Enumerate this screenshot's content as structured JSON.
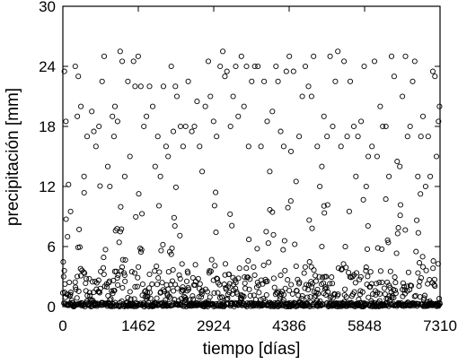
{
  "chart_data": {
    "type": "scatter",
    "xlabel": "tiempo [días]",
    "ylabel": "precipitación [mm]",
    "xlim": [
      0,
      7310
    ],
    "ylim": [
      0,
      30
    ],
    "xticks": [
      0,
      1462,
      2924,
      4386,
      5848,
      7310
    ],
    "xtick_labels": [
      "0",
      "1462",
      "2924",
      "4386",
      "5848",
      "7310"
    ],
    "yticks": [
      0,
      6,
      12,
      18,
      24,
      30
    ],
    "ytick_labels": [
      "0",
      "6",
      "12",
      "18",
      "24",
      "30"
    ],
    "marker": "open-circle",
    "grid": false,
    "legend": "none",
    "series": [
      {
        "note_points": "daily values, one per day, estimated as seasonal pattern",
        "x": [],
        "y": []
      }
    ],
    "points": [
      [
        30,
        23.5
      ],
      [
        60,
        18.5
      ],
      [
        110,
        12.2
      ],
      [
        150,
        9.5
      ],
      [
        240,
        24
      ],
      [
        280,
        19
      ],
      [
        300,
        23
      ],
      [
        350,
        20
      ],
      [
        410,
        13
      ],
      [
        470,
        17
      ],
      [
        560,
        19.5
      ],
      [
        600,
        17.5
      ],
      [
        640,
        16
      ],
      [
        700,
        18
      ],
      [
        760,
        22.5
      ],
      [
        800,
        25
      ],
      [
        870,
        14
      ],
      [
        910,
        12
      ],
      [
        960,
        19
      ],
      [
        990,
        17
      ],
      [
        1010,
        20
      ],
      [
        1060,
        18.5
      ],
      [
        1110,
        25.5
      ],
      [
        1150,
        24.5
      ],
      [
        1200,
        13
      ],
      [
        1260,
        22.5
      ],
      [
        1300,
        15
      ],
      [
        1370,
        24.5
      ],
      [
        1400,
        22
      ],
      [
        1460,
        25
      ],
      [
        1510,
        22
      ],
      [
        1570,
        18
      ],
      [
        1620,
        19
      ],
      [
        1680,
        22
      ],
      [
        1740,
        20
      ],
      [
        1790,
        14
      ],
      [
        1840,
        17
      ],
      [
        1890,
        13
      ],
      [
        1950,
        22
      ],
      [
        2000,
        16
      ],
      [
        2040,
        15
      ],
      [
        2100,
        24
      ],
      [
        2140,
        17.5
      ],
      [
        2180,
        22
      ],
      [
        2210,
        21
      ],
      [
        2280,
        18
      ],
      [
        2330,
        16
      ],
      [
        2380,
        18
      ],
      [
        2430,
        22.5
      ],
      [
        2500,
        17.5
      ],
      [
        2550,
        18
      ],
      [
        2600,
        20.5
      ],
      [
        2650,
        16
      ],
      [
        2700,
        13.5
      ],
      [
        2760,
        20
      ],
      [
        2820,
        24.5
      ],
      [
        2860,
        21
      ],
      [
        2920,
        18.5
      ],
      [
        2980,
        17
      ],
      [
        3050,
        24
      ],
      [
        3100,
        25.5
      ],
      [
        3140,
        23
      ],
      [
        3180,
        23.5
      ],
      [
        3250,
        18
      ],
      [
        3300,
        21
      ],
      [
        3350,
        24
      ],
      [
        3400,
        19
      ],
      [
        3460,
        25
      ],
      [
        3510,
        20
      ],
      [
        3560,
        24
      ],
      [
        3600,
        16
      ],
      [
        3660,
        22.5
      ],
      [
        3720,
        24
      ],
      [
        3780,
        24
      ],
      [
        3840,
        16
      ],
      [
        3900,
        22.5
      ],
      [
        3960,
        18.5
      ],
      [
        4010,
        13.5
      ],
      [
        4060,
        19.5
      ],
      [
        4130,
        24
      ],
      [
        4170,
        22.5
      ],
      [
        4220,
        17.5
      ],
      [
        4280,
        16
      ],
      [
        4330,
        23.5
      ],
      [
        4390,
        25
      ],
      [
        4420,
        15.5
      ],
      [
        4470,
        23.5
      ],
      [
        4520,
        12.5
      ],
      [
        4580,
        17
      ],
      [
        4640,
        21
      ],
      [
        4700,
        24
      ],
      [
        4760,
        22
      ],
      [
        4820,
        21
      ],
      [
        4860,
        25
      ],
      [
        4930,
        16
      ],
      [
        4980,
        12
      ],
      [
        5020,
        14
      ],
      [
        5060,
        19
      ],
      [
        5120,
        17
      ],
      [
        5180,
        25
      ],
      [
        5230,
        18
      ],
      [
        5280,
        22.5
      ],
      [
        5330,
        25.5
      ],
      [
        5390,
        16
      ],
      [
        5450,
        24.5
      ],
      [
        5510,
        17
      ],
      [
        5570,
        22.5
      ],
      [
        5640,
        18
      ],
      [
        5680,
        13
      ],
      [
        5720,
        17
      ],
      [
        5780,
        18.5
      ],
      [
        5840,
        24
      ],
      [
        5880,
        12
      ],
      [
        5920,
        15
      ],
      [
        5990,
        16
      ],
      [
        6040,
        24.5
      ],
      [
        6090,
        15
      ],
      [
        6150,
        20
      ],
      [
        6200,
        18
      ],
      [
        6260,
        18
      ],
      [
        6320,
        13
      ],
      [
        6370,
        25
      ],
      [
        6420,
        23
      ],
      [
        6480,
        14.5
      ],
      [
        6530,
        14
      ],
      [
        6580,
        21
      ],
      [
        6640,
        25
      ],
      [
        6680,
        17
      ],
      [
        6730,
        18
      ],
      [
        6780,
        22.5
      ],
      [
        6820,
        24.5
      ],
      [
        6880,
        13
      ],
      [
        6940,
        17
      ],
      [
        6980,
        19
      ],
      [
        7030,
        12
      ],
      [
        7080,
        17
      ],
      [
        7120,
        13
      ],
      [
        7170,
        23.5
      ],
      [
        7210,
        23
      ],
      [
        7240,
        15
      ],
      [
        7280,
        18.5
      ],
      [
        7300,
        20
      ]
    ]
  }
}
